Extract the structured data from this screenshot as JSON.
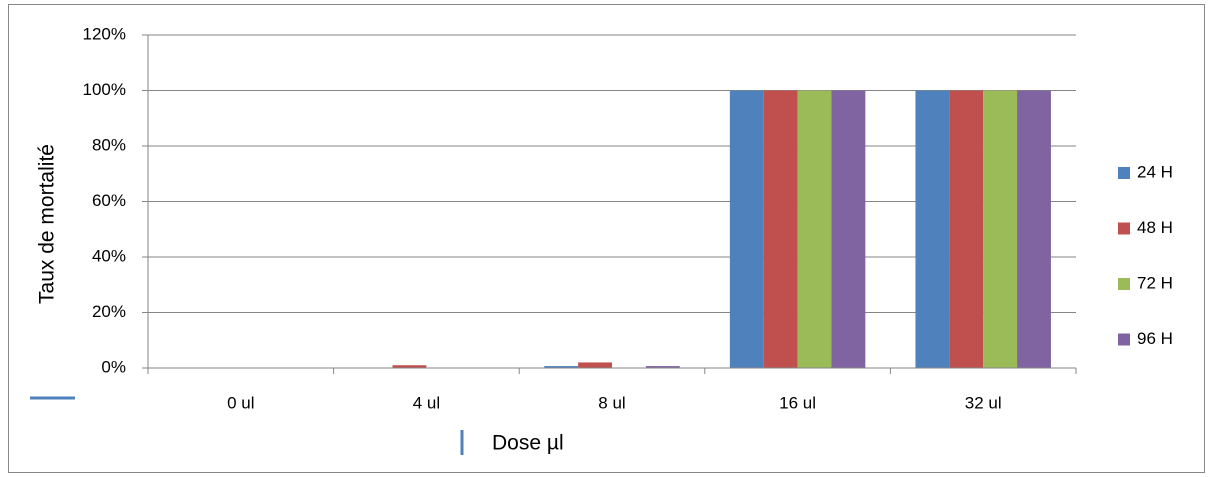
{
  "chart_data": {
    "type": "bar",
    "x_label": "Dose µl",
    "y_label": "Taux de mortalité",
    "categories": [
      "0 ul",
      "4 ul",
      "8 ul",
      "16 ul",
      "32 ul"
    ],
    "series": [
      {
        "name": "24 H",
        "color": "#4f81bd",
        "values": [
          0,
          0,
          0.7,
          100,
          100
        ]
      },
      {
        "name": "48 H",
        "color": "#c0504d",
        "values": [
          0,
          1,
          2,
          100,
          100
        ]
      },
      {
        "name": "72 H",
        "color": "#9bbb59",
        "values": [
          0,
          0,
          0,
          100,
          100
        ]
      },
      {
        "name": "96 H",
        "color": "#8064a2",
        "values": [
          0,
          0,
          0.7,
          100,
          100
        ]
      }
    ],
    "ylim": [
      0,
      120
    ],
    "yticks": [
      {
        "value": 0,
        "label": "0%"
      },
      {
        "value": 20,
        "label": "20%"
      },
      {
        "value": 40,
        "label": "40%"
      },
      {
        "value": 60,
        "label": "60%"
      },
      {
        "value": 80,
        "label": "80%"
      },
      {
        "value": 100,
        "label": "100%"
      },
      {
        "value": 120,
        "label": "120%"
      }
    ],
    "grid": true,
    "legend": "right"
  }
}
